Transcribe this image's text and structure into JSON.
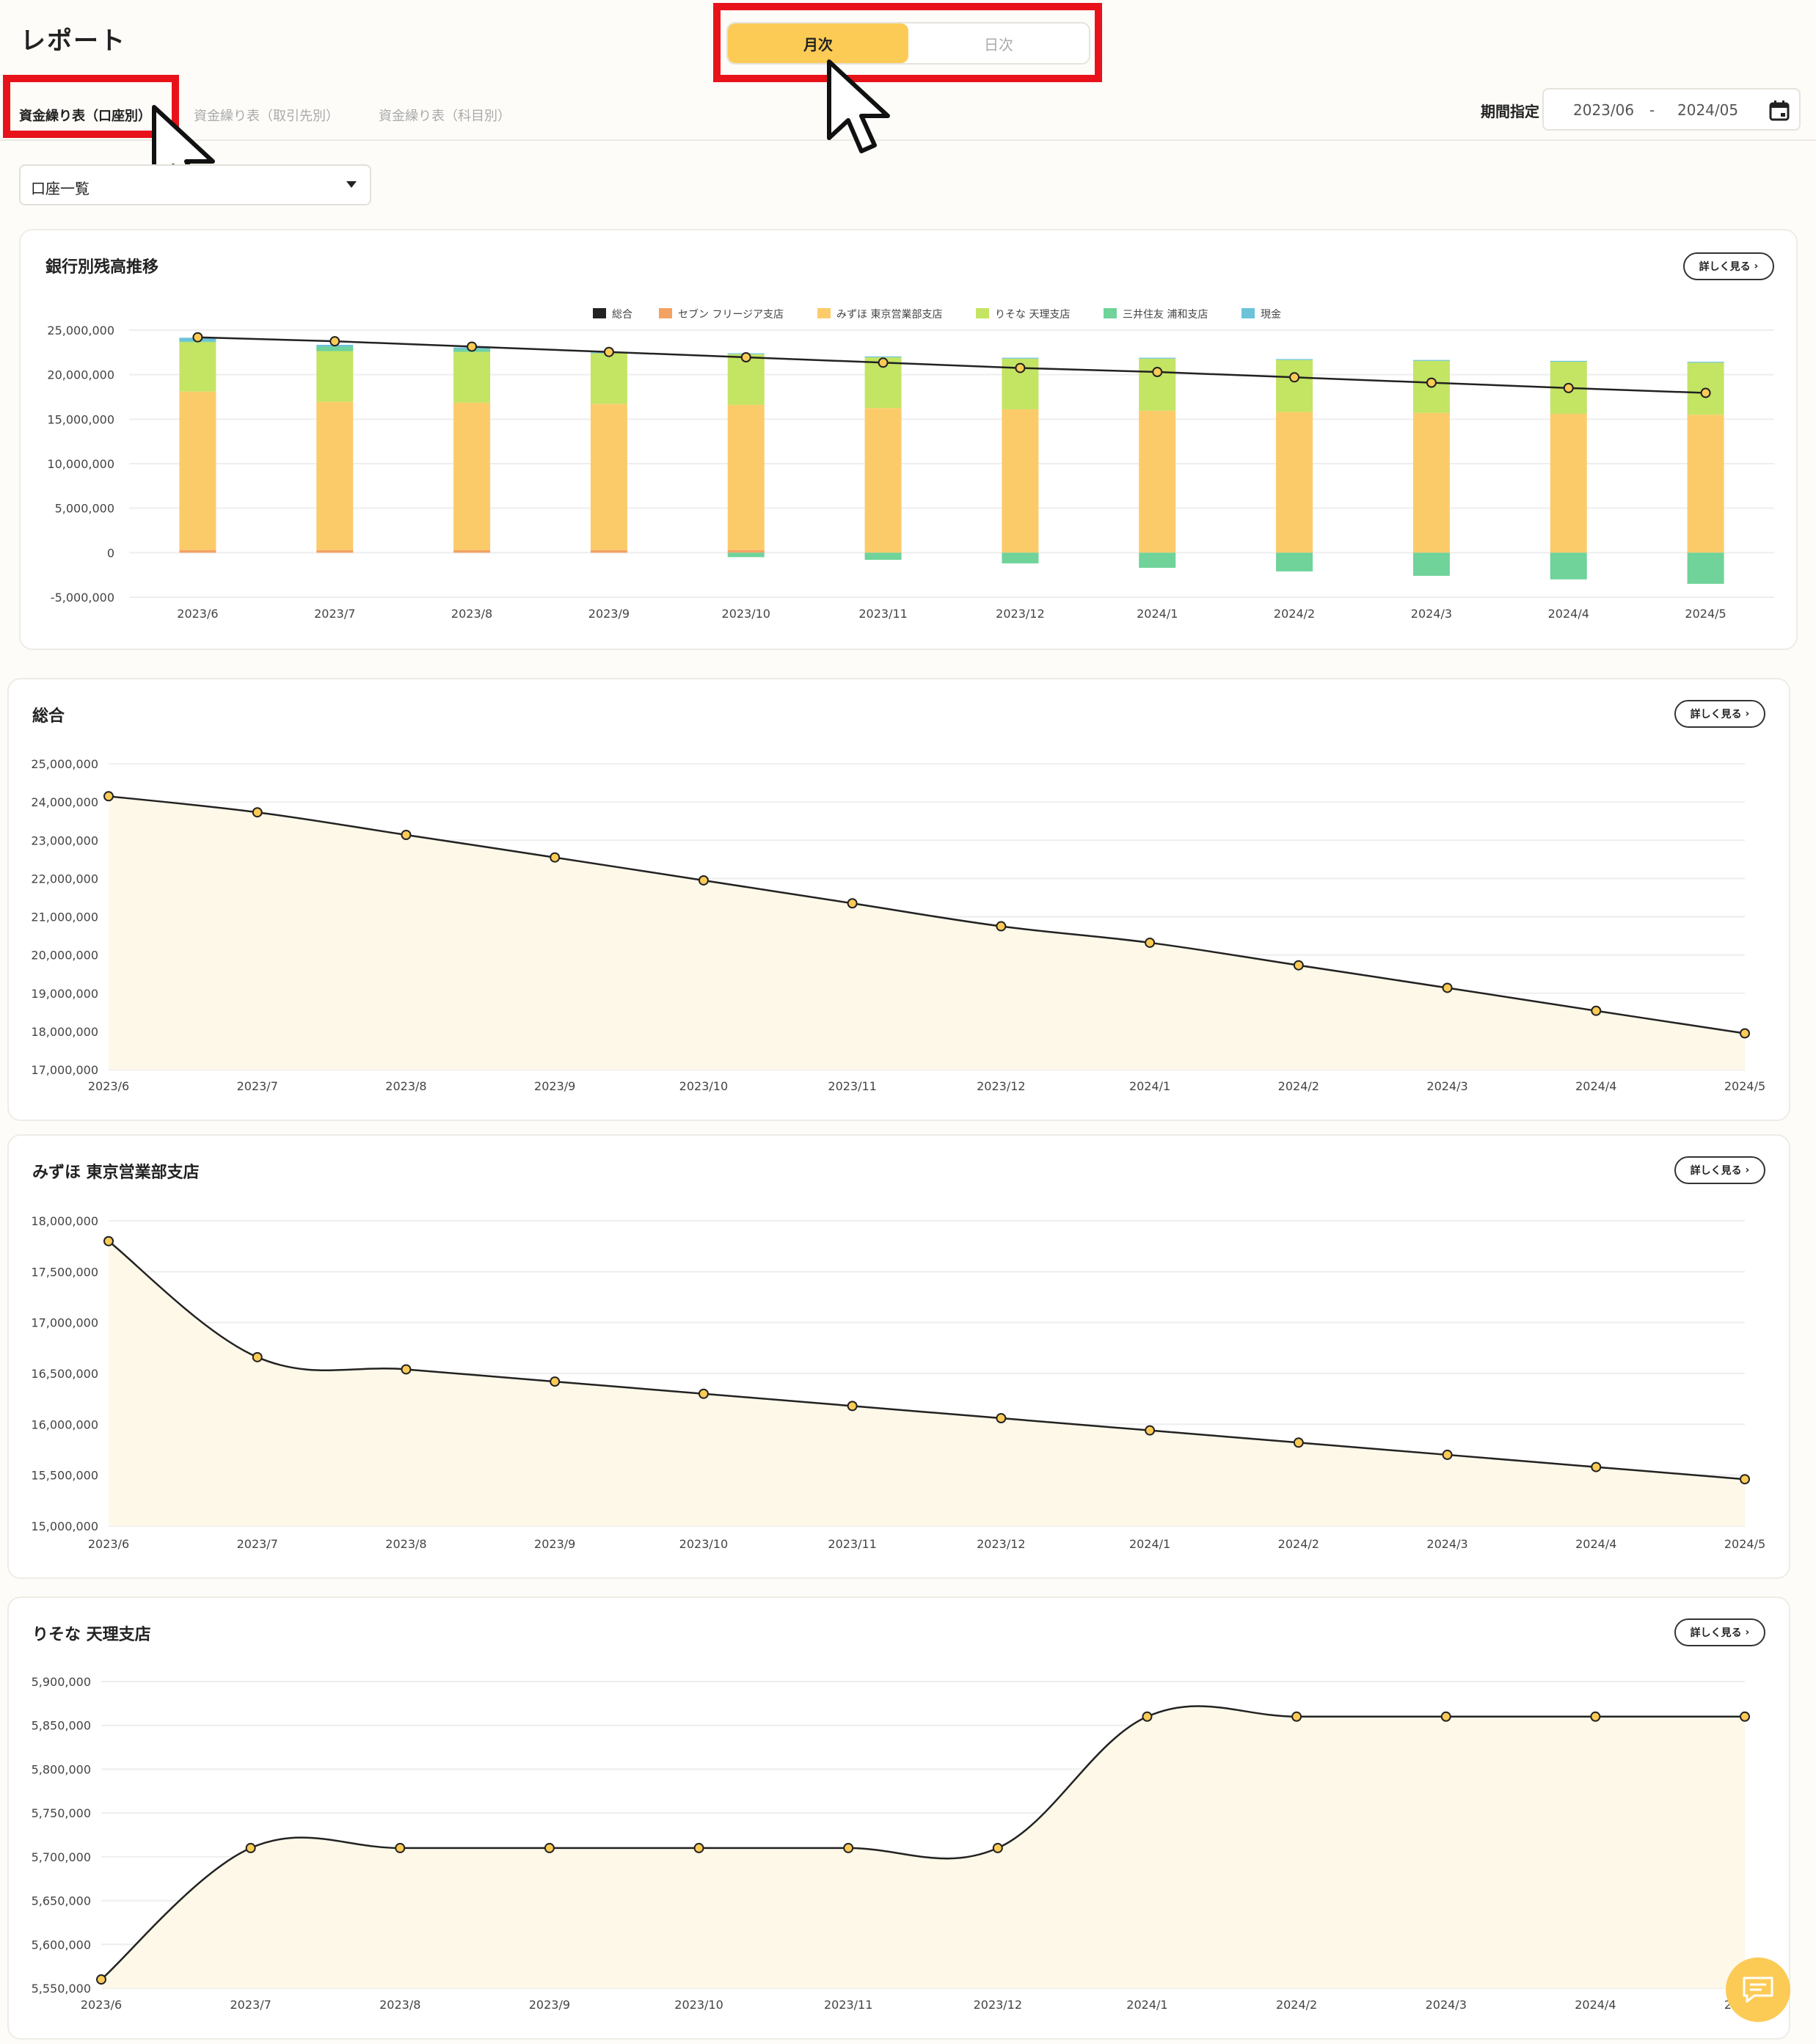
{
  "page": {
    "title": "レポート"
  },
  "mode_toggle": {
    "monthly": "月次",
    "daily": "日次",
    "active": "monthly"
  },
  "tabs": [
    {
      "label": "資金繰り表（口座別）",
      "active": true
    },
    {
      "label": "資金繰り表（取引先別）",
      "active": false
    },
    {
      "label": "資金繰り表（科目別）",
      "active": false
    }
  ],
  "period": {
    "label": "期間指定",
    "from": "2023/06",
    "sep": "-",
    "to": "2024/05"
  },
  "account_select": {
    "value": "口座一覧"
  },
  "more_label": "詳しく見る",
  "colors": {
    "accent": "#fccb56",
    "highlight": "#e8131a",
    "line": "#222222",
    "area_fill": "#fdf8e8"
  },
  "chart_data": [
    {
      "type": "bar",
      "title": "銀行別残高推移",
      "stacked": true,
      "categories": [
        "2023/6",
        "2023/7",
        "2023/8",
        "2023/9",
        "2023/10",
        "2023/11",
        "2023/12",
        "2024/1",
        "2024/2",
        "2024/3",
        "2024/4",
        "2024/5"
      ],
      "y_ticks": [
        "25,000,000",
        "20,000,000",
        "15,000,000",
        "10,000,000",
        "5,000,000",
        "0",
        "-5,000,000"
      ],
      "ylim": [
        -5000000,
        25000000
      ],
      "legend_position": "top",
      "series": [
        {
          "name": "総合",
          "kind": "line",
          "color": "#222222",
          "values": [
            24200000,
            23750000,
            23150000,
            22550000,
            21950000,
            21350000,
            20750000,
            20300000,
            19700000,
            19100000,
            18500000,
            17950000
          ]
        },
        {
          "name": "セブン フリージア支店",
          "color": "#f4a261",
          "values": [
            300000,
            300000,
            300000,
            300000,
            300000,
            0,
            0,
            0,
            0,
            0,
            0,
            0
          ]
        },
        {
          "name": "みずほ 東京営業部支店",
          "color": "#fccb69",
          "values": [
            17800000,
            16650000,
            16550000,
            16400000,
            16300000,
            16250000,
            16100000,
            15950000,
            15800000,
            15700000,
            15600000,
            15500000
          ]
        },
        {
          "name": "りそな 天理支店",
          "color": "#c4e464",
          "values": [
            5550000,
            5700000,
            5700000,
            5700000,
            5700000,
            5700000,
            5700000,
            5850000,
            5850000,
            5850000,
            5850000,
            5850000
          ]
        },
        {
          "name": "三井住友 浦和支店",
          "color": "#6fd39a",
          "values": [
            100000,
            500000,
            300000,
            0,
            -500000,
            -800000,
            -1200000,
            -1700000,
            -2100000,
            -2600000,
            -3000000,
            -3500000
          ]
        },
        {
          "name": "現金",
          "color": "#6bc3d9",
          "values": [
            400000,
            200000,
            200000,
            100000,
            100000,
            100000,
            100000,
            100000,
            100000,
            100000,
            100000,
            100000
          ]
        }
      ]
    },
    {
      "type": "area",
      "title": "総合",
      "categories": [
        "2023/6",
        "2023/7",
        "2023/8",
        "2023/9",
        "2023/10",
        "2023/11",
        "2023/12",
        "2024/1",
        "2024/2",
        "2024/3",
        "2024/4",
        "2024/5"
      ],
      "y_ticks": [
        "25,000,000",
        "24,000,000",
        "23,000,000",
        "22,000,000",
        "21,000,000",
        "20,000,000",
        "19,000,000",
        "18,000,000",
        "17,000,000"
      ],
      "ylim": [
        17000000,
        25000000
      ],
      "values": [
        24150000,
        23730000,
        23140000,
        22550000,
        21950000,
        21350000,
        20750000,
        20320000,
        19730000,
        19140000,
        18540000,
        17950000
      ]
    },
    {
      "type": "area",
      "title": "みずほ 東京営業部支店",
      "categories": [
        "2023/6",
        "2023/7",
        "2023/8",
        "2023/9",
        "2023/10",
        "2023/11",
        "2023/12",
        "2024/1",
        "2024/2",
        "2024/3",
        "2024/4",
        "2024/5"
      ],
      "y_ticks": [
        "18,000,000",
        "17,500,000",
        "17,000,000",
        "16,500,000",
        "16,000,000",
        "15,500,000",
        "15,000,000"
      ],
      "ylim": [
        15000000,
        18000000
      ],
      "values": [
        17800000,
        16660000,
        16540000,
        16420000,
        16300000,
        16180000,
        16060000,
        15940000,
        15820000,
        15700000,
        15580000,
        15460000
      ]
    },
    {
      "type": "area",
      "title": "りそな 天理支店",
      "categories": [
        "2023/6",
        "2023/7",
        "2023/8",
        "2023/9",
        "2023/10",
        "2023/11",
        "2023/12",
        "2024/1",
        "2024/2",
        "2024/3",
        "2024/4",
        "2024/5"
      ],
      "y_ticks": [
        "5,900,000",
        "5,850,000",
        "5,800,000",
        "5,750,000",
        "5,700,000",
        "5,650,000",
        "5,600,000",
        "5,550,000"
      ],
      "ylim": [
        5550000,
        5900000
      ],
      "values": [
        5560000,
        5710000,
        5710000,
        5710000,
        5710000,
        5710000,
        5710000,
        5860000,
        5860000,
        5860000,
        5860000,
        5860000
      ]
    }
  ]
}
